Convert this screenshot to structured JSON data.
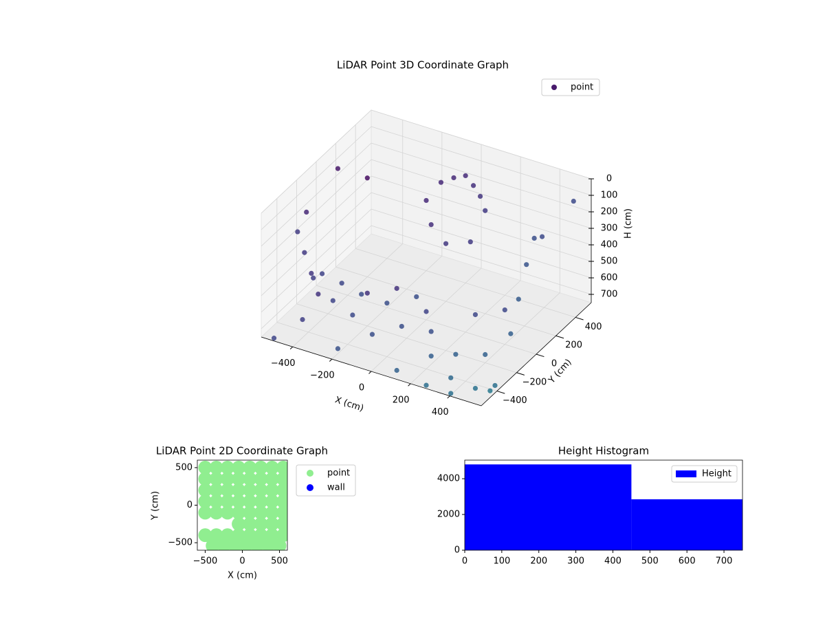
{
  "chart_data": [
    {
      "type": "scatter3d",
      "title": "LiDAR Point 3D Coordinate Graph",
      "xlabel": "X (cm)",
      "ylabel": "Y (cm)",
      "zlabel": "H (cm)",
      "colormap": "viridis",
      "legend": "upper right",
      "xlim": [
        -560,
        560
      ],
      "ylim": [
        -560,
        560
      ],
      "zlim": [
        750,
        0
      ],
      "xticks": [
        {
          "value": -400,
          "label": "−400"
        },
        {
          "value": -200,
          "label": "−200"
        },
        0,
        200,
        400
      ],
      "yticks": [
        {
          "value": -400,
          "label": "−400"
        },
        {
          "value": -200,
          "label": "−200"
        },
        0,
        200,
        400
      ],
      "zticks": [
        0,
        100,
        200,
        300,
        400,
        500,
        600,
        700
      ],
      "series": [
        {
          "name": "point",
          "color": "#481a6c",
          "x": [
            -480,
            -470,
            -460,
            -450,
            -440,
            -400,
            -350,
            -300,
            -250,
            -200,
            -150,
            -100,
            -50,
            0,
            50,
            100,
            -100,
            -50,
            0,
            50,
            100,
            150,
            -150,
            -100,
            0,
            100,
            450,
            460,
            470,
            480,
            440,
            400,
            300,
            200,
            -300,
            -200,
            0,
            200,
            300,
            -500,
            -550,
            550,
            500,
            550,
            600,
            400,
            300,
            -500,
            -200,
            100,
            350,
            -560
          ],
          "y": [
            -350,
            -300,
            -250,
            -200,
            -380,
            -350,
            -360,
            -350,
            -360,
            -350,
            -360,
            -350,
            -300,
            -250,
            -200,
            -150,
            350,
            380,
            400,
            380,
            350,
            300,
            300,
            250,
            200,
            250,
            200,
            100,
            0,
            -100,
            300,
            -200,
            -300,
            -350,
            0,
            100,
            0,
            100,
            200,
            400,
            200,
            400,
            -500,
            -400,
            -550,
            -550,
            -600,
            -550,
            -500,
            -500,
            -450,
            -100
          ],
          "z": [
            200,
            350,
            500,
            650,
            700,
            450,
            400,
            550,
            420,
            600,
            450,
            680,
            500,
            650,
            480,
            700,
            150,
            120,
            100,
            130,
            160,
            200,
            250,
            350,
            400,
            380,
            200,
            300,
            450,
            600,
            250,
            700,
            680,
            700,
            700,
            690,
            700,
            700,
            690,
            300,
            150,
            50,
            700,
            720,
            650,
            740,
            700,
            740,
            720,
            740,
            720,
            250
          ]
        }
      ]
    },
    {
      "type": "scatter",
      "title": "LiDAR Point 2D Coordinate Graph",
      "xlabel": "X (cm)",
      "ylabel": "Y (cm)",
      "legend": "outside right",
      "xlim": [
        -606,
        606
      ],
      "ylim": [
        -600,
        600
      ],
      "xticks": [
        {
          "value": -500,
          "label": "−500"
        },
        0,
        500
      ],
      "yticks": [
        {
          "value": -500,
          "label": "−500"
        },
        0,
        500
      ],
      "series": [
        {
          "name": "point",
          "color": "#90ee90",
          "x": [
            -500,
            -350,
            -200,
            -50,
            100,
            250,
            400,
            550,
            -500,
            -350,
            -200,
            -50,
            100,
            250,
            400,
            550,
            -500,
            -350,
            -200,
            -50,
            100,
            250,
            400,
            550,
            -500,
            -350,
            -200,
            -50,
            100,
            250,
            400,
            550,
            -500,
            -350,
            -200,
            -50,
            100,
            250,
            400,
            550,
            -50,
            100,
            250,
            400,
            550,
            -500,
            -350,
            -200,
            -50,
            100,
            250,
            400,
            550,
            -400,
            -250,
            -100,
            50,
            200,
            350,
            500
          ],
          "y": [
            500,
            500,
            500,
            500,
            500,
            500,
            500,
            500,
            350,
            350,
            350,
            350,
            350,
            350,
            350,
            350,
            200,
            200,
            200,
            200,
            200,
            200,
            200,
            200,
            50,
            50,
            50,
            50,
            50,
            50,
            50,
            50,
            -100,
            -100,
            -100,
            -100,
            -100,
            -100,
            -100,
            -100,
            -250,
            -250,
            -250,
            -250,
            -250,
            -400,
            -400,
            -400,
            -400,
            -400,
            -400,
            -400,
            -400,
            -540,
            -540,
            -540,
            -540,
            -540,
            -540,
            -540
          ]
        },
        {
          "name": "wall",
          "color": "#0000ff",
          "x": [],
          "y": []
        }
      ]
    },
    {
      "type": "histogram",
      "title": "Height Histogram",
      "legend": "upper right",
      "xlim": [
        0,
        750
      ],
      "ylim": [
        0,
        5040
      ],
      "xticks": [
        0,
        100,
        200,
        300,
        400,
        500,
        600,
        700
      ],
      "yticks": [
        0,
        2000,
        4000
      ],
      "series": [
        {
          "name": "Height",
          "color": "#0000ff",
          "bins": [
            0,
            450,
            750
          ],
          "counts": [
            4800,
            2850
          ]
        }
      ]
    }
  ]
}
